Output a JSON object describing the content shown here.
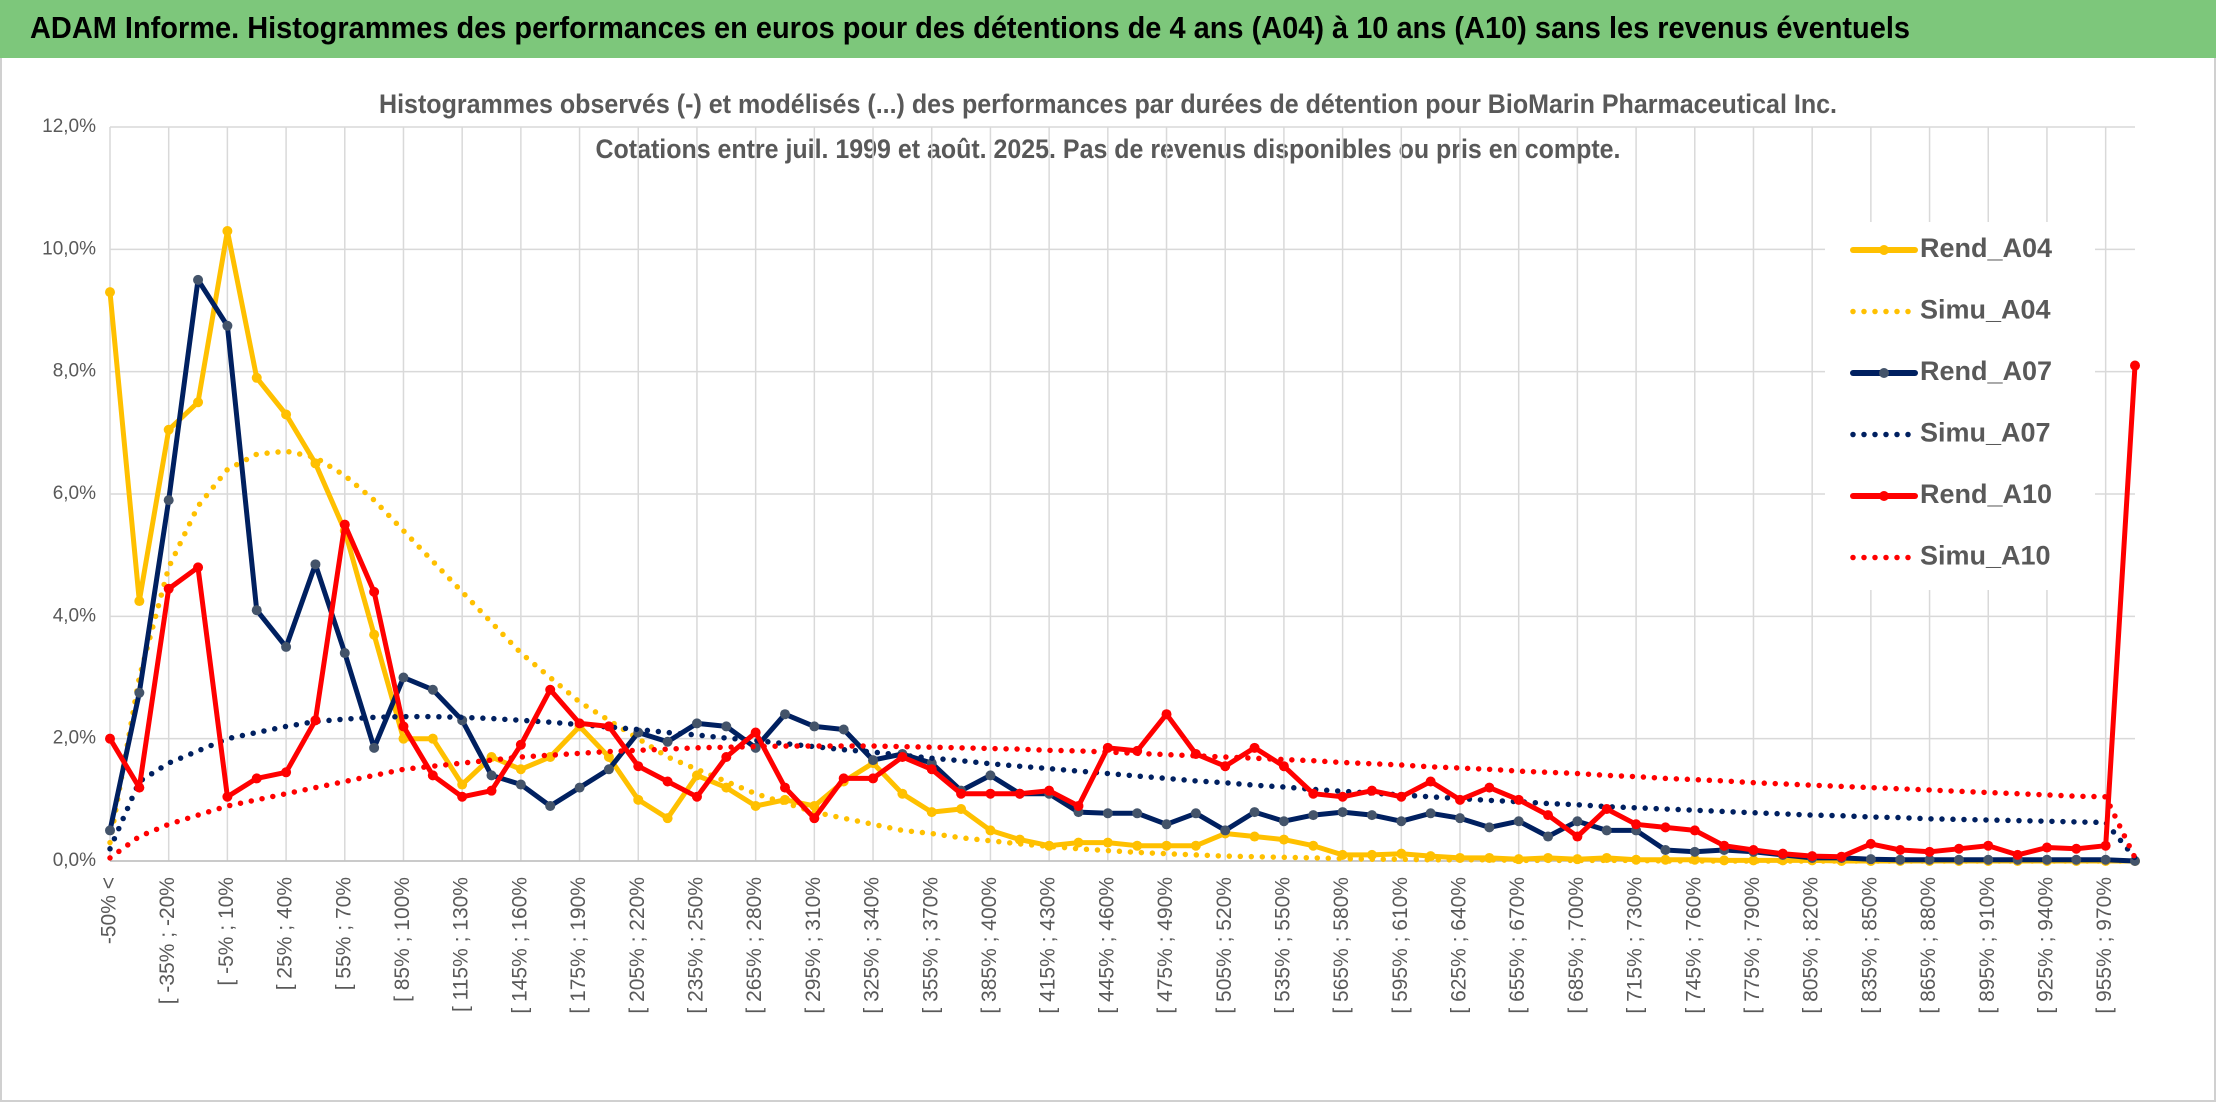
{
  "header": {
    "title": "ADAM Informe. Histogrammes des performances en euros pour des détentions de 4 ans (A04) à 10 ans (A10) sans les revenus éventuels"
  },
  "chart_data": {
    "type": "line",
    "title": "Histogrammes observés (-) et modélisés (...) des performances par durées de détention pour BioMarin Pharmaceutical Inc.",
    "subtitle": "Cotations entre juil. 1999 et août. 2025. Pas de revenus disponibles ou pris en compte.",
    "categories": [
      "-50% <",
      null,
      "[ -35% ; -20%",
      null,
      "[ -5% ; 10%",
      null,
      "[ 25% ; 40%",
      null,
      "[ 55% ; 70%",
      null,
      "[ 85% ; 100%",
      null,
      "[ 115% ; 130%",
      null,
      "[ 145% ; 160%",
      null,
      "[ 175% ; 190%",
      null,
      "[ 205% ; 220%",
      null,
      "[ 235% ; 250%",
      null,
      "[ 265% ; 280%",
      null,
      "[ 295% ; 310%",
      null,
      "[ 325% ; 340%",
      null,
      "[ 355% ; 370%",
      null,
      "[ 385% ; 400%",
      null,
      "[ 415% ; 430%",
      null,
      "[ 445% ; 460%",
      null,
      "[ 475% ; 490%",
      null,
      "[ 505% ; 520%",
      null,
      "[ 535% ; 550%",
      null,
      "[ 565% ; 580%",
      null,
      "[ 595% ; 610%",
      null,
      "[ 625% ; 640%",
      null,
      "[ 655% ; 670%",
      null,
      "[ 685% ; 700%",
      null,
      "[ 715% ; 730%",
      null,
      "[ 745% ; 760%",
      null,
      "[ 775% ; 790%",
      null,
      "[ 805% ; 820%",
      null,
      "[ 835% ; 850%",
      null,
      "[ 865% ; 880%",
      null,
      "[ 895% ; 910%",
      null,
      "[ 925% ; 940%",
      null,
      "[ 955% ; 970%",
      null
    ],
    "ylim": [
      0,
      12
    ],
    "yticks": [
      {
        "value": 0,
        "label": "0,0%"
      },
      {
        "value": 2,
        "label": "2,0%"
      },
      {
        "value": 4,
        "label": "4,0%"
      },
      {
        "value": 6,
        "label": "6,0%"
      },
      {
        "value": 8,
        "label": "8,0%"
      },
      {
        "value": 10,
        "label": "10,0%"
      },
      {
        "value": 12,
        "label": "12,0%"
      }
    ],
    "grid": true,
    "legend": "right",
    "series": [
      {
        "name": "Rend_A04",
        "color": "#ffc000",
        "style": "solid",
        "marker_color": "#ffc000",
        "values": [
          9.3,
          4.25,
          7.05,
          7.5,
          10.3,
          7.9,
          7.3,
          6.5,
          5.4,
          3.7,
          2.0,
          2.0,
          1.25,
          1.7,
          1.5,
          1.7,
          2.2,
          1.7,
          1.0,
          0.7,
          1.4,
          1.2,
          0.9,
          1.0,
          0.9,
          1.3,
          1.6,
          1.1,
          0.8,
          0.85,
          0.5,
          0.35,
          0.25,
          0.3,
          0.3,
          0.25,
          0.25,
          0.25,
          0.45,
          0.4,
          0.35,
          0.25,
          0.1,
          0.1,
          0.12,
          0.08,
          0.05,
          0.05,
          0.03,
          0.05,
          0.03,
          0.05,
          0.02,
          0.02,
          0.02,
          0.01,
          0.01,
          0.01,
          0.01,
          0,
          0,
          0,
          0,
          0,
          0,
          0,
          0,
          0,
          0,
          0
        ]
      },
      {
        "name": "Simu_A04",
        "color": "#ffc000",
        "style": "dotted",
        "values": [
          0.3,
          3.0,
          4.8,
          5.8,
          6.4,
          6.65,
          6.7,
          6.6,
          6.3,
          5.9,
          5.4,
          4.9,
          4.4,
          3.9,
          3.4,
          3.0,
          2.6,
          2.3,
          2.0,
          1.7,
          1.5,
          1.3,
          1.1,
          0.95,
          0.8,
          0.7,
          0.6,
          0.5,
          0.45,
          0.38,
          0.33,
          0.28,
          0.24,
          0.2,
          0.17,
          0.14,
          0.12,
          0.1,
          0.08,
          0.07,
          0.06,
          0.05,
          0.04,
          0.03,
          0.03,
          0.02,
          0.02,
          0.02,
          0.01,
          0.01,
          0.01,
          0.01,
          0.01,
          0,
          0,
          0,
          0,
          0,
          0,
          0,
          0,
          0,
          0,
          0,
          0,
          0,
          0,
          0,
          0,
          0
        ]
      },
      {
        "name": "Rend_A07",
        "color": "#002060",
        "style": "solid",
        "marker_color": "#44546a",
        "values": [
          0.5,
          2.75,
          5.9,
          9.5,
          8.75,
          4.1,
          3.5,
          4.85,
          3.4,
          1.85,
          3.0,
          2.8,
          2.3,
          1.4,
          1.25,
          0.9,
          1.2,
          1.5,
          2.1,
          1.95,
          2.25,
          2.2,
          1.85,
          2.4,
          2.2,
          2.15,
          1.65,
          1.75,
          1.6,
          1.15,
          1.4,
          1.1,
          1.1,
          0.8,
          0.78,
          0.78,
          0.6,
          0.78,
          0.5,
          0.8,
          0.65,
          0.75,
          0.8,
          0.75,
          0.65,
          0.78,
          0.7,
          0.55,
          0.65,
          0.4,
          0.65,
          0.5,
          0.5,
          0.18,
          0.15,
          0.18,
          0.15,
          0.1,
          0.05,
          0.05,
          0.03,
          0.02,
          0.02,
          0.02,
          0.02,
          0.02,
          0.02,
          0.02,
          0.02,
          0
        ]
      },
      {
        "name": "Simu_A07",
        "color": "#002060",
        "style": "dotted",
        "values": [
          0.2,
          1.3,
          1.6,
          1.8,
          2.0,
          2.1,
          2.2,
          2.28,
          2.32,
          2.35,
          2.36,
          2.36,
          2.35,
          2.33,
          2.3,
          2.27,
          2.23,
          2.19,
          2.15,
          2.1,
          2.06,
          2.01,
          1.97,
          1.92,
          1.87,
          1.82,
          1.78,
          1.73,
          1.68,
          1.64,
          1.59,
          1.55,
          1.51,
          1.47,
          1.43,
          1.39,
          1.35,
          1.31,
          1.28,
          1.24,
          1.21,
          1.17,
          1.14,
          1.11,
          1.08,
          1.05,
          1.02,
          0.99,
          0.97,
          0.94,
          0.92,
          0.89,
          0.87,
          0.85,
          0.83,
          0.81,
          0.79,
          0.77,
          0.75,
          0.74,
          0.72,
          0.71,
          0.69,
          0.68,
          0.67,
          0.66,
          0.65,
          0.64,
          0.63,
          0.05
        ]
      },
      {
        "name": "Rend_A10",
        "color": "#ff0000",
        "style": "solid",
        "marker_color": "#ff0000",
        "values": [
          2.0,
          1.2,
          4.45,
          4.8,
          1.05,
          1.35,
          1.45,
          2.3,
          5.5,
          4.4,
          2.2,
          1.4,
          1.05,
          1.15,
          1.9,
          2.8,
          2.25,
          2.2,
          1.55,
          1.3,
          1.05,
          1.7,
          2.1,
          1.2,
          0.7,
          1.35,
          1.35,
          1.7,
          1.5,
          1.1,
          1.1,
          1.1,
          1.15,
          0.9,
          1.85,
          1.8,
          2.4,
          1.75,
          1.55,
          1.85,
          1.55,
          1.1,
          1.05,
          1.15,
          1.05,
          1.3,
          1.0,
          1.2,
          1.0,
          0.75,
          0.4,
          0.85,
          0.6,
          0.55,
          0.5,
          0.25,
          0.18,
          0.12,
          0.08,
          0.07,
          0.28,
          0.18,
          0.15,
          0.2,
          0.25,
          0.1,
          0.22,
          0.2,
          0.25,
          8.1
        ]
      },
      {
        "name": "Simu_A10",
        "color": "#ff0000",
        "style": "dotted",
        "values": [
          0.05,
          0.4,
          0.6,
          0.75,
          0.9,
          1.0,
          1.1,
          1.2,
          1.3,
          1.4,
          1.5,
          1.55,
          1.6,
          1.65,
          1.7,
          1.73,
          1.76,
          1.79,
          1.81,
          1.83,
          1.85,
          1.86,
          1.87,
          1.88,
          1.88,
          1.88,
          1.88,
          1.87,
          1.86,
          1.85,
          1.84,
          1.83,
          1.81,
          1.8,
          1.78,
          1.76,
          1.74,
          1.72,
          1.7,
          1.68,
          1.66,
          1.64,
          1.61,
          1.59,
          1.57,
          1.54,
          1.52,
          1.5,
          1.47,
          1.45,
          1.43,
          1.4,
          1.38,
          1.35,
          1.33,
          1.31,
          1.28,
          1.26,
          1.24,
          1.22,
          1.2,
          1.18,
          1.16,
          1.14,
          1.12,
          1.1,
          1.08,
          1.06,
          1.05,
          0.05
        ]
      }
    ]
  }
}
